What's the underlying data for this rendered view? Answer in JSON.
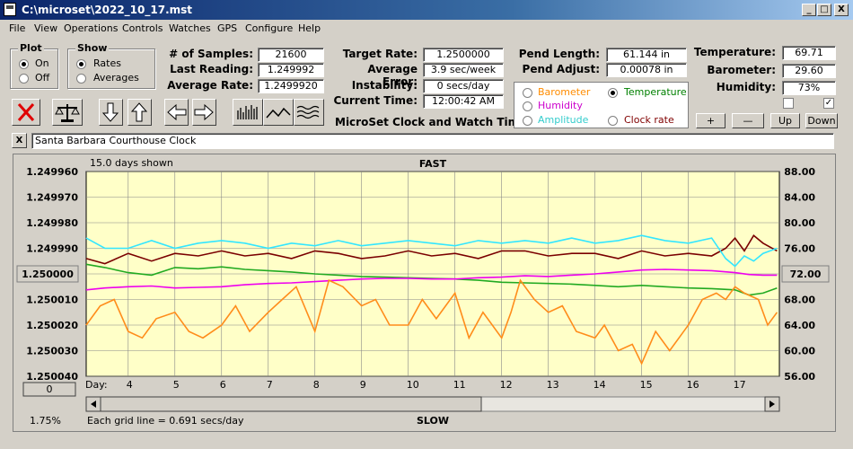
{
  "window": {
    "title": "C:\\microset\\2022_10_17.mst",
    "min": "_",
    "max": "□",
    "close": "X"
  },
  "menu": [
    "File",
    "View",
    "Operations",
    "Controls",
    "Watches",
    "GPS",
    "Configure",
    "Help"
  ],
  "plot_group": {
    "title": "Plot",
    "options": [
      {
        "label": "On",
        "selected": true
      },
      {
        "label": "Off",
        "selected": false
      }
    ]
  },
  "show_group": {
    "title": "Show",
    "options": [
      {
        "label": "Rates",
        "selected": true
      },
      {
        "label": "Averages",
        "selected": false
      }
    ]
  },
  "stats": {
    "samples_label": "# of Samples:",
    "samples": "21600",
    "last_label": "Last Reading:",
    "last": "1.249992",
    "avg_label": "Average Rate:",
    "avg": "1.2499920",
    "target_label": "Target Rate:",
    "target": "1.2500000",
    "avgerr_label": "Average Error:",
    "avgerr": "3.9 sec/week",
    "instab_label": "Instability:",
    "instab": "0 secs/day",
    "time_label": "Current Time:",
    "time": "12:00:42 AM",
    "pendlen_label": "Pend Length:",
    "pendlen": "61.144 in",
    "pendadj_label": "Pend Adjust:",
    "pendadj": "0.00078 in",
    "temp_label": "Temperature:",
    "temp": "69.71",
    "baro_label": "Barometer:",
    "baro": "29.60",
    "hum_label": "Humidity:",
    "hum": "73%"
  },
  "app_caption": "MicroSet Clock and Watch Timer",
  "sensor_options": [
    {
      "label": "Barometer",
      "color": "#ff8c00",
      "selected": false
    },
    {
      "label": "Temperature",
      "color": "#008000",
      "selected": true
    },
    {
      "label": "Humidity",
      "color": "#cc00cc",
      "selected": false
    },
    {
      "label": "Amplitude",
      "color": "#33cccc",
      "selected": false
    },
    {
      "label": "Clock rate",
      "color": "#800000",
      "selected": false
    }
  ],
  "checkbox2": "✓",
  "adjust_buttons": [
    "+",
    "—",
    "Up",
    "Down"
  ],
  "clock_name": "Santa Barbara Courthouse Clock",
  "clock_close": "X",
  "chart_data": {
    "type": "line",
    "title": "FAST",
    "bottom_label": "SLOW",
    "days_shown": "15.0 days shown",
    "grid_note": "Each grid line = 0.691 secs/day",
    "left_ticks": [
      "1.249960",
      "1.249970",
      "1.249980",
      "1.249990",
      "1.250000",
      "1.250010",
      "1.250020",
      "1.250030",
      "1.250040"
    ],
    "right_ticks": [
      "88.00",
      "84.00",
      "80.00",
      "76.00",
      "72.00",
      "68.00",
      "64.00",
      "60.00",
      "56.00"
    ],
    "center_left": "1.250000",
    "center_right": "72.00",
    "bottom_left_btn": "0",
    "percent": "1.75%",
    "x_label": "Day:",
    "x_ticks": [
      "4",
      "5",
      "6",
      "7",
      "8",
      "9",
      "10",
      "11",
      "12",
      "13",
      "14",
      "15",
      "16",
      "17"
    ],
    "x_range": [
      3.1,
      17.95
    ],
    "left_ylim": [
      1.24996,
      1.25004
    ],
    "right_ylim": [
      56,
      88
    ],
    "series": [
      {
        "name": "Clock rate",
        "color": "#7a0000",
        "axis": "left",
        "x": [
          3.1,
          3.5,
          4,
          4.5,
          5,
          5.5,
          6,
          6.5,
          7,
          7.5,
          8,
          8.5,
          9,
          9.5,
          10,
          10.5,
          11,
          11.5,
          12,
          12.5,
          13,
          13.5,
          14,
          14.5,
          15,
          15.5,
          16,
          16.5,
          16.8,
          17,
          17.2,
          17.4,
          17.6,
          17.9
        ],
        "values": [
          1.249994,
          1.249996,
          1.249992,
          1.249995,
          1.249992,
          1.249993,
          1.249991,
          1.249993,
          1.249992,
          1.249994,
          1.249991,
          1.249992,
          1.249994,
          1.249993,
          1.249991,
          1.249993,
          1.249992,
          1.249994,
          1.249991,
          1.249991,
          1.249993,
          1.249992,
          1.249992,
          1.249994,
          1.249991,
          1.249993,
          1.249992,
          1.249993,
          1.24999,
          1.249986,
          1.249991,
          1.249985,
          1.249988,
          1.249991
        ]
      },
      {
        "name": "Amplitude",
        "color": "#33e6ff",
        "axis": "left",
        "x": [
          3.1,
          3.5,
          4,
          4.5,
          5,
          5.5,
          6,
          6.5,
          7,
          7.5,
          8,
          8.5,
          9,
          9.5,
          10,
          10.5,
          11,
          11.5,
          12,
          12.5,
          13,
          13.5,
          14,
          14.5,
          15,
          15.5,
          16,
          16.5,
          16.8,
          17,
          17.2,
          17.4,
          17.6,
          17.9
        ],
        "values": [
          1.249986,
          1.24999,
          1.24999,
          1.249987,
          1.24999,
          1.249988,
          1.249987,
          1.249988,
          1.24999,
          1.249988,
          1.249989,
          1.249987,
          1.249989,
          1.249988,
          1.249987,
          1.249988,
          1.249989,
          1.249987,
          1.249988,
          1.249987,
          1.249988,
          1.249986,
          1.249988,
          1.249987,
          1.249985,
          1.249987,
          1.249988,
          1.249986,
          1.249994,
          1.249997,
          1.249993,
          1.249995,
          1.249992,
          1.24999
        ]
      },
      {
        "name": "Temperature",
        "color": "#22aa22",
        "axis": "right",
        "x": [
          3.1,
          3.5,
          4,
          4.5,
          5,
          5.5,
          6,
          6.5,
          7,
          7.5,
          8,
          8.5,
          9,
          9.5,
          10,
          10.5,
          11,
          11.5,
          12,
          12.5,
          13,
          13.5,
          14,
          14.5,
          15,
          15.5,
          16,
          16.5,
          17,
          17.3,
          17.6,
          17.9
        ],
        "values": [
          73.5,
          73.0,
          72.2,
          71.8,
          73.0,
          72.8,
          73.1,
          72.7,
          72.5,
          72.3,
          72.0,
          71.8,
          71.6,
          71.5,
          71.4,
          71.3,
          71.2,
          71.0,
          70.7,
          70.6,
          70.5,
          70.4,
          70.2,
          70.0,
          70.2,
          70.0,
          69.8,
          69.7,
          69.5,
          68.7,
          69.0,
          69.8
        ]
      },
      {
        "name": "Humidity",
        "color": "#ee00ee",
        "axis": "right",
        "x": [
          3.1,
          3.5,
          4,
          4.5,
          5,
          5.5,
          6,
          6.5,
          7,
          7.5,
          8,
          8.5,
          9,
          9.5,
          10,
          10.5,
          11,
          11.5,
          12,
          12.5,
          13,
          13.5,
          14,
          14.5,
          15,
          15.5,
          16,
          16.5,
          17,
          17.3,
          17.6,
          17.9
        ],
        "values": [
          69.5,
          69.8,
          70.0,
          70.1,
          69.8,
          69.9,
          70.0,
          70.3,
          70.5,
          70.6,
          70.8,
          71.0,
          71.2,
          71.3,
          71.3,
          71.2,
          71.2,
          71.4,
          71.5,
          71.7,
          71.6,
          71.8,
          72.0,
          72.3,
          72.6,
          72.7,
          72.6,
          72.5,
          72.2,
          71.9,
          71.8,
          71.8
        ]
      },
      {
        "name": "Barometer",
        "color": "#ff8c1a",
        "axis": "right",
        "x": [
          3.1,
          3.4,
          3.7,
          4,
          4.3,
          4.6,
          5,
          5.3,
          5.6,
          6,
          6.3,
          6.6,
          7,
          7.3,
          7.6,
          8,
          8.3,
          8.6,
          9,
          9.3,
          9.6,
          10,
          10.3,
          10.6,
          11,
          11.3,
          11.6,
          12,
          12.2,
          12.4,
          12.7,
          13,
          13.3,
          13.6,
          14,
          14.2,
          14.5,
          14.8,
          15,
          15.3,
          15.6,
          16,
          16.3,
          16.6,
          16.8,
          17,
          17.2,
          17.5,
          17.7,
          17.9
        ],
        "values": [
          64,
          67,
          68,
          63,
          62,
          65,
          66,
          63,
          62,
          64,
          67,
          63,
          66,
          68,
          70,
          63,
          71,
          70,
          67,
          68,
          64,
          64,
          68,
          65,
          69,
          62,
          66,
          62,
          66,
          71,
          68,
          66,
          67,
          63,
          62,
          64,
          60,
          61,
          58,
          63,
          60,
          64,
          68,
          69,
          68,
          70,
          69,
          68,
          64,
          66
        ]
      }
    ]
  }
}
